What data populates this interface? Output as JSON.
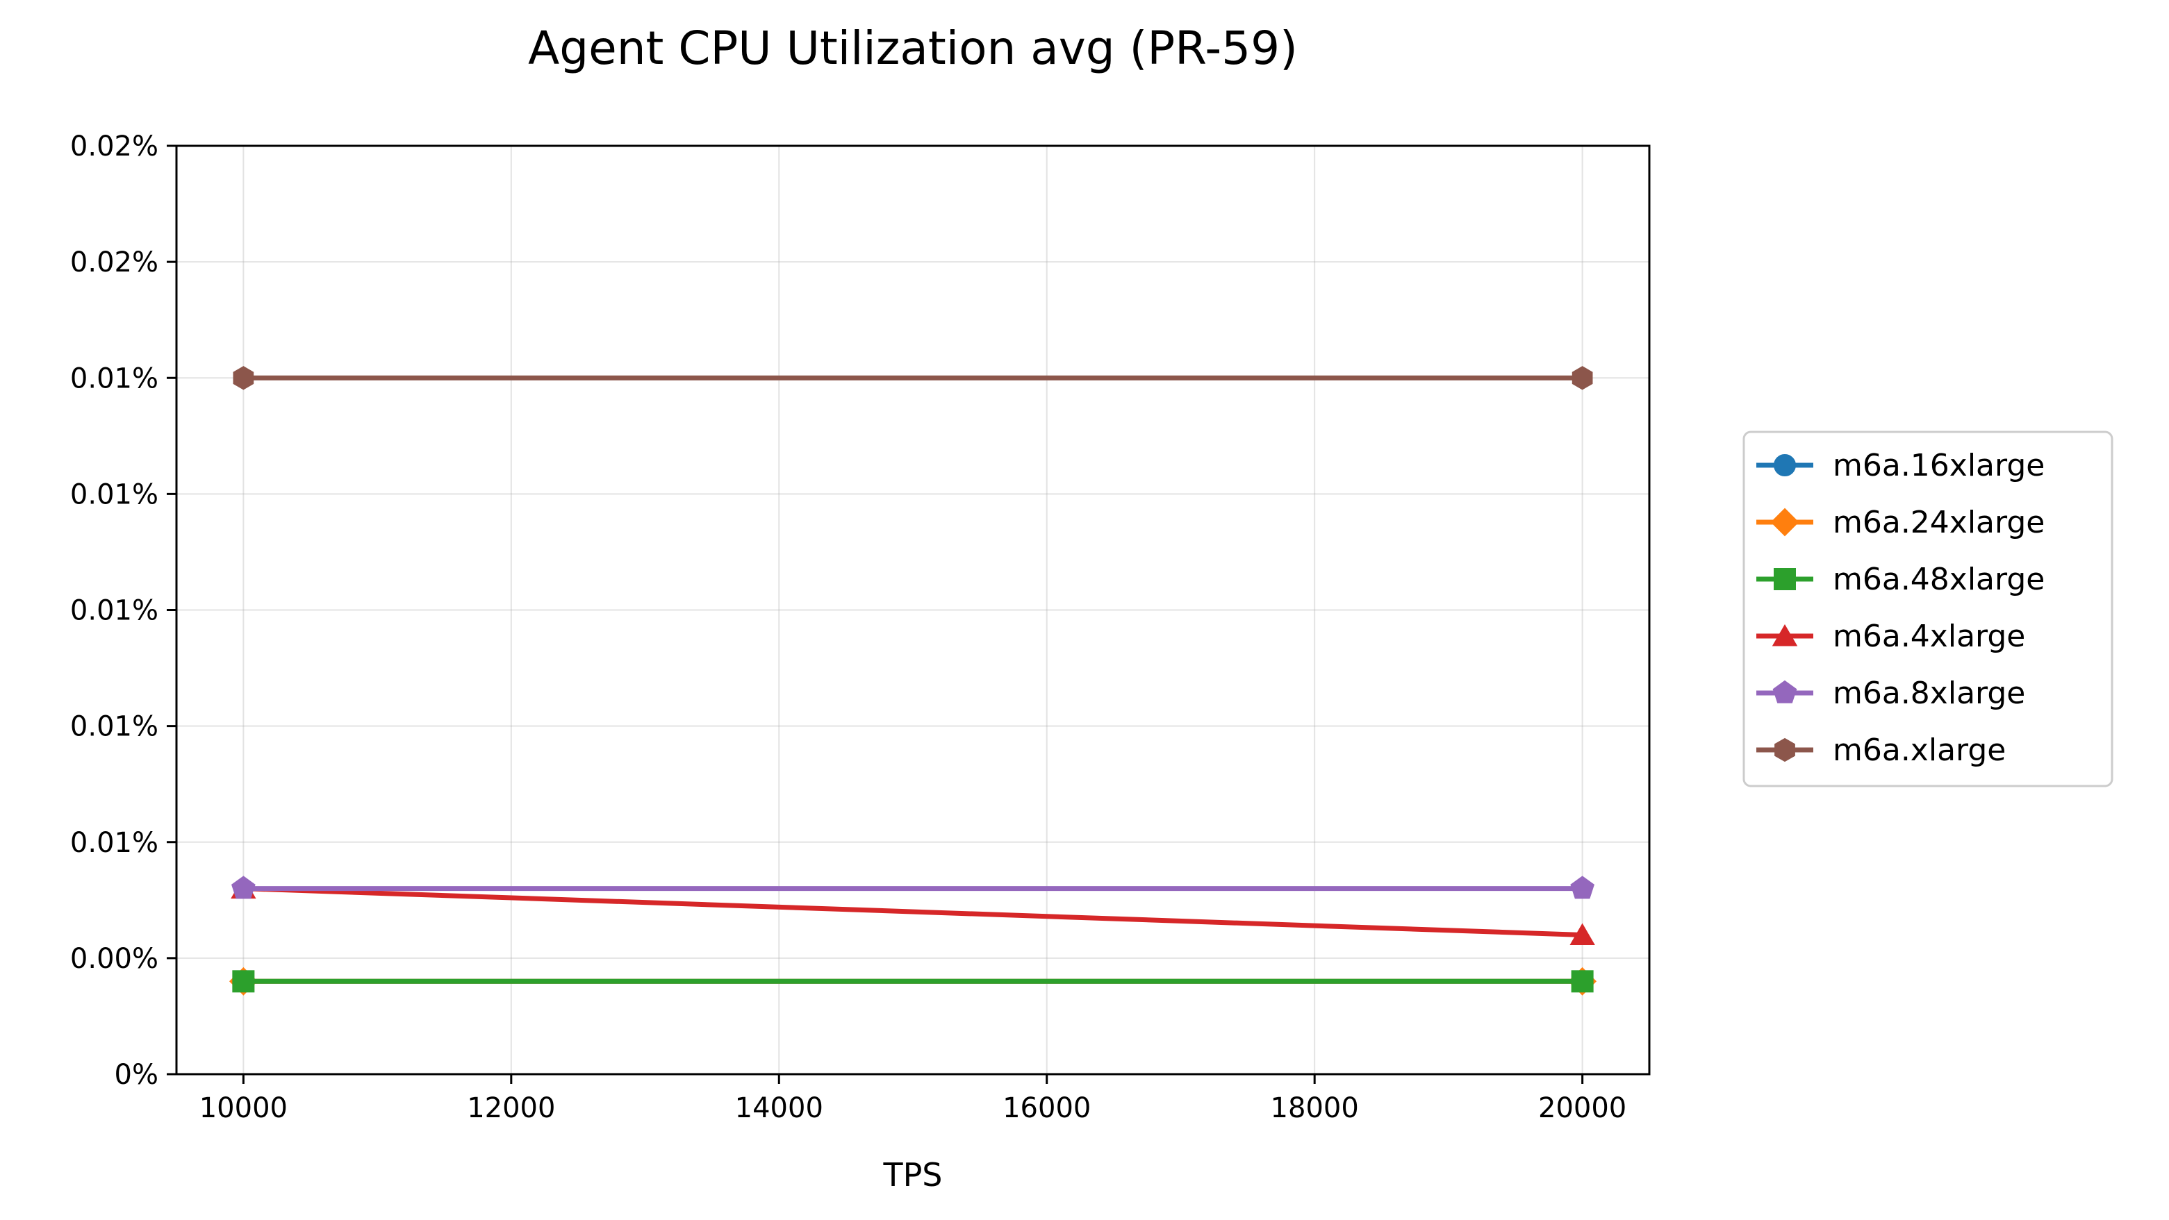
{
  "chart_data": {
    "type": "line",
    "title": "Agent CPU Utilization avg (PR-59)",
    "xlabel": "TPS",
    "ylabel": "",
    "x": [
      10000,
      20000
    ],
    "xlim": [
      9500,
      20500
    ],
    "ylim": [
      0,
      0.0002
    ],
    "xticks": [
      10000,
      12000,
      14000,
      16000,
      18000,
      20000
    ],
    "yticks": [
      0,
      2.5e-05,
      5e-05,
      7.5e-05,
      0.0001,
      0.000125,
      0.00015,
      0.000175,
      0.0002
    ],
    "ytick_labels": [
      "0%",
      "0.00%",
      "0.01%",
      "0.01%",
      "0.01%",
      "0.01%",
      "0.01%",
      "0.02%",
      "0.02%"
    ],
    "grid": true,
    "legend_position": "right",
    "series": [
      {
        "name": "m6a.16xlarge",
        "values": [
          2e-05,
          2e-05
        ],
        "color": "#1f77b4",
        "marker": "circle"
      },
      {
        "name": "m6a.24xlarge",
        "values": [
          2e-05,
          2e-05
        ],
        "color": "#ff7f0e",
        "marker": "diamond"
      },
      {
        "name": "m6a.48xlarge",
        "values": [
          2e-05,
          2e-05
        ],
        "color": "#2ca02c",
        "marker": "square"
      },
      {
        "name": "m6a.4xlarge",
        "values": [
          4e-05,
          3e-05
        ],
        "color": "#d62728",
        "marker": "triangle"
      },
      {
        "name": "m6a.8xlarge",
        "values": [
          4e-05,
          4e-05
        ],
        "color": "#9467bd",
        "marker": "pentagon"
      },
      {
        "name": "m6a.xlarge",
        "values": [
          0.00015,
          0.00015
        ],
        "color": "#8c564b",
        "marker": "hexagon"
      }
    ]
  }
}
